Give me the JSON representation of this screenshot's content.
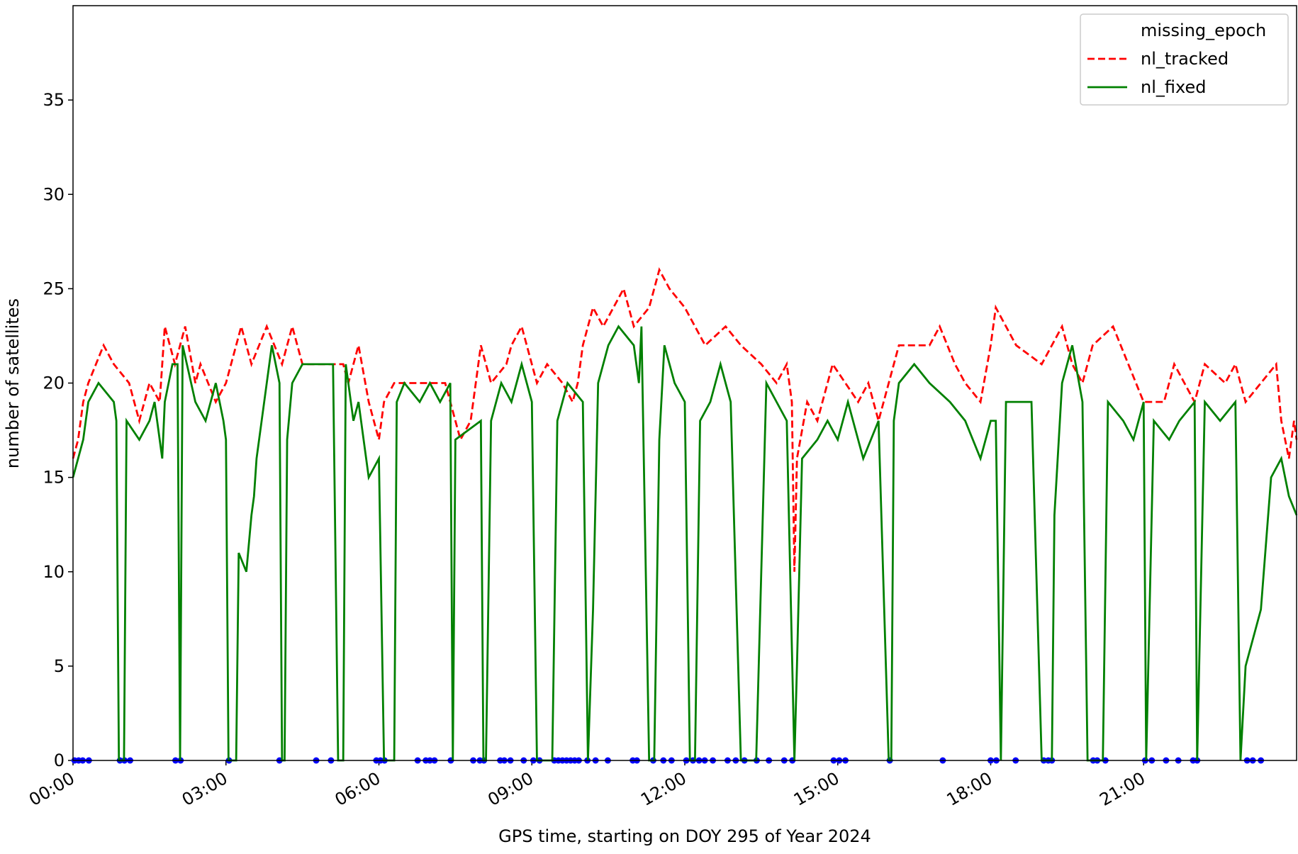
{
  "chart_data": {
    "type": "line",
    "xlabel": "GPS time, starting on DOY 295 of Year 2024",
    "ylabel": "number of satellites",
    "xlim": [
      0,
      24
    ],
    "ylim": [
      0,
      40
    ],
    "xticks": [
      {
        "value": 0,
        "label": "00:00"
      },
      {
        "value": 3,
        "label": "03:00"
      },
      {
        "value": 6,
        "label": "06:00"
      },
      {
        "value": 9,
        "label": "09:00"
      },
      {
        "value": 12,
        "label": "12:00"
      },
      {
        "value": 15,
        "label": "15:00"
      },
      {
        "value": 18,
        "label": "18:00"
      },
      {
        "value": 21,
        "label": "21:00"
      }
    ],
    "yticks": [
      0,
      5,
      10,
      15,
      20,
      25,
      30,
      35
    ],
    "legend": "upper right",
    "series": [
      {
        "name": "missing_epoch",
        "color": "#0000ff",
        "marker": "o",
        "x": [
          0.03,
          0.11,
          0.19,
          0.31,
          0.92,
          1.01,
          1.12,
          2.01,
          2.11,
          3.06,
          4.05,
          4.77,
          5.06,
          5.95,
          6.03,
          6.11,
          6.76,
          6.92,
          7.0,
          7.09,
          7.41,
          7.85,
          7.98,
          8.06,
          8.38,
          8.46,
          8.58,
          8.84,
          9.03,
          9.15,
          9.44,
          9.52,
          9.6,
          9.68,
          9.76,
          9.84,
          9.92,
          10.09,
          10.25,
          10.49,
          10.98,
          11.06,
          11.38,
          11.58,
          11.74,
          12.03,
          12.16,
          12.28,
          12.39,
          12.55,
          12.84,
          13.0,
          13.17,
          13.41,
          13.65,
          13.95,
          14.11,
          14.92,
          15.03,
          15.15,
          16.02,
          17.06,
          18.0,
          18.11,
          18.49,
          19.04,
          19.13,
          19.2,
          20.01,
          20.09,
          20.25,
          21.03,
          21.16,
          21.44,
          21.68,
          21.97,
          22.05,
          23.03,
          23.14,
          23.3
        ],
        "values": [
          0,
          0,
          0,
          0,
          0,
          0,
          0,
          0,
          0,
          0,
          0,
          0,
          0,
          0,
          0,
          0,
          0,
          0,
          0,
          0,
          0,
          0,
          0,
          0,
          0,
          0,
          0,
          0,
          0,
          0,
          0,
          0,
          0,
          0,
          0,
          0,
          0,
          0,
          0,
          0,
          0,
          0,
          0,
          0,
          0,
          0,
          0,
          0,
          0,
          0,
          0,
          0,
          0,
          0,
          0,
          0,
          0,
          0,
          0,
          0,
          0,
          0,
          0,
          0,
          0,
          0,
          0,
          0,
          0,
          0,
          0,
          0,
          0,
          0,
          0,
          0,
          0,
          0,
          0,
          0
        ]
      },
      {
        "name": "nl_tracked",
        "color": "#ff0000",
        "linestyle": "--",
        "x": [
          0,
          0.1,
          0.2,
          0.3,
          0.45,
          0.6,
          0.8,
          1.1,
          1.3,
          1.5,
          1.7,
          1.8,
          2.0,
          2.2,
          2.4,
          2.5,
          2.8,
          3.0,
          3.3,
          3.5,
          3.8,
          4.1,
          4.3,
          4.5,
          5.3,
          5.4,
          5.6,
          5.8,
          5.9,
          6.0,
          6.1,
          6.3,
          7.3,
          7.5,
          7.6,
          7.8,
          7.9,
          8.0,
          8.2,
          8.5,
          8.6,
          8.8,
          9.1,
          9.3,
          9.6,
          9.8,
          9.9,
          10.0,
          10.2,
          10.4,
          10.6,
          10.8,
          11.0,
          11.3,
          11.5,
          11.7,
          12.0,
          12.2,
          12.4,
          12.8,
          13.1,
          13.5,
          13.8,
          14.0,
          14.1,
          14.15,
          14.2,
          14.4,
          14.6,
          14.8,
          14.9,
          15.4,
          15.6,
          15.8,
          16.0,
          16.2,
          16.8,
          17.0,
          17.3,
          17.5,
          17.8,
          18.0,
          18.1,
          18.3,
          18.5,
          19.0,
          19.2,
          19.4,
          19.6,
          19.8,
          20.0,
          20.4,
          20.7,
          21.0,
          21.4,
          21.6,
          21.8,
          22.0,
          22.2,
          22.6,
          22.8,
          23.0,
          23.3,
          23.6,
          23.7,
          23.85,
          23.95,
          24
        ],
        "values": [
          16,
          17,
          19,
          20,
          21,
          22,
          21,
          20,
          18,
          20,
          19,
          23,
          21,
          23,
          20,
          21,
          19,
          20,
          23,
          21,
          23,
          21,
          23,
          21,
          21,
          20,
          22,
          19,
          18,
          17,
          19,
          20,
          20,
          18,
          17,
          18,
          20,
          22,
          20,
          21,
          22,
          23,
          20,
          21,
          20,
          19,
          20,
          22,
          24,
          23,
          24,
          25,
          23,
          24,
          26,
          25,
          24,
          23,
          22,
          23,
          22,
          21,
          20,
          21,
          19,
          10,
          16,
          19,
          18,
          20,
          21,
          19,
          20,
          18,
          20,
          22,
          22,
          23,
          21,
          20,
          19,
          22,
          24,
          23,
          22,
          21,
          22,
          23,
          21,
          20,
          22,
          23,
          21,
          19,
          19,
          21,
          20,
          19,
          21,
          20,
          21,
          19,
          20,
          21,
          18,
          16,
          18,
          17
        ]
      },
      {
        "name": "nl_fixed",
        "color": "#008000",
        "linestyle": "-",
        "x": [
          0,
          0.1,
          0.2,
          0.3,
          0.5,
          0.8,
          0.85,
          0.9,
          1.0,
          1.05,
          1.3,
          1.5,
          1.6,
          1.75,
          1.8,
          1.95,
          2.05,
          2.1,
          2.15,
          2.4,
          2.6,
          2.8,
          2.95,
          3.0,
          3.05,
          3.2,
          3.25,
          3.4,
          3.5,
          3.55,
          3.6,
          3.7,
          3.8,
          3.9,
          4.05,
          4.1,
          4.15,
          4.2,
          4.3,
          4.5,
          5.1,
          5.2,
          5.3,
          5.35,
          5.5,
          5.6,
          5.7,
          5.8,
          6.0,
          6.1,
          6.3,
          6.35,
          6.5,
          6.8,
          7.0,
          7.2,
          7.4,
          7.45,
          7.5,
          8.0,
          8.05,
          8.1,
          8.2,
          8.4,
          8.6,
          8.8,
          9.0,
          9.1,
          9.4,
          9.5,
          9.7,
          10.0,
          10.1,
          10.2,
          10.3,
          10.5,
          10.7,
          11.0,
          11.1,
          11.15,
          11.3,
          11.4,
          11.5,
          11.6,
          11.8,
          12.0,
          12.1,
          12.2,
          12.3,
          12.5,
          12.7,
          12.9,
          13.1,
          13.4,
          13.45,
          13.6,
          13.8,
          14.0,
          14.15,
          14.2,
          14.3,
          14.6,
          14.8,
          15.0,
          15.2,
          15.5,
          15.8,
          16.0,
          16.05,
          16.1,
          16.2,
          16.5,
          16.8,
          17.2,
          17.5,
          17.8,
          18.0,
          18.1,
          18.2,
          18.3,
          18.8,
          19.0,
          19.2,
          19.25,
          19.4,
          19.6,
          19.8,
          19.9,
          20.2,
          20.3,
          20.6,
          20.8,
          21.0,
          21.05,
          21.2,
          21.5,
          21.7,
          22.0,
          22.05,
          22.2,
          22.5,
          22.8,
          22.9,
          23.0,
          23.3,
          23.5,
          23.7,
          23.85,
          24
        ],
        "values": [
          15,
          16,
          17,
          19,
          20,
          19,
          18,
          0,
          0,
          18,
          17,
          18,
          19,
          16,
          19,
          21,
          21,
          0,
          22,
          19,
          18,
          20,
          18,
          17,
          0,
          0,
          11,
          10,
          13,
          14,
          16,
          18,
          20,
          22,
          20,
          0,
          0,
          17,
          20,
          21,
          21,
          0,
          0,
          21,
          18,
          19,
          17,
          15,
          16,
          0,
          0,
          19,
          20,
          19,
          20,
          19,
          20,
          0,
          17,
          18,
          0,
          0,
          18,
          20,
          19,
          21,
          19,
          0,
          0,
          18,
          20,
          19,
          0,
          8,
          20,
          22,
          23,
          22,
          20,
          23,
          0,
          0,
          17,
          22,
          20,
          19,
          0,
          0,
          18,
          19,
          21,
          19,
          0,
          0,
          5,
          20,
          19,
          18,
          0,
          5,
          16,
          17,
          18,
          17,
          19,
          16,
          18,
          0,
          0,
          18,
          20,
          21,
          20,
          19,
          18,
          16,
          18,
          18,
          0,
          19,
          19,
          0,
          0,
          13,
          20,
          22,
          19,
          0,
          0,
          19,
          18,
          17,
          19,
          0,
          18,
          17,
          18,
          19,
          0,
          19,
          18,
          19,
          0,
          5,
          8,
          15,
          16,
          14,
          13
        ]
      }
    ]
  }
}
